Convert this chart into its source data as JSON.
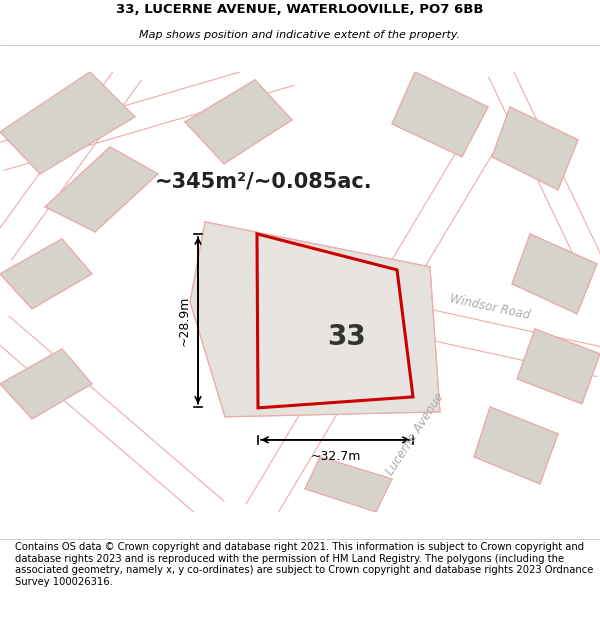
{
  "title_line1": "33, LUCERNE AVENUE, WATERLOOVILLE, PO7 6BB",
  "title_line2": "Map shows position and indicative extent of the property.",
  "area_text": "~345m²/~0.085ac.",
  "plot_number": "33",
  "dim_width": "~32.7m",
  "dim_height": "~28.9m",
  "road_label_1": "Windsor Road",
  "road_label_2": "Lucerne Avenue",
  "footer_text": "Contains OS data © Crown copyright and database right 2021. This information is subject to Crown copyright and database rights 2023 and is reproduced with the permission of HM Land Registry. The polygons (including the associated geometry, namely x, y co-ordinates) are subject to Crown copyright and database rights 2023 Ordnance Survey 100026316.",
  "map_bg": "#f2f0ed",
  "plot_fill": "#e8e5e0",
  "plot_border": "#cc0000",
  "road_color": "#ffffff",
  "building_fill": "#d6d2cc",
  "building_border": "#c5c0ba",
  "pink_line": "#f0aaaa",
  "grey_line": "#c8c3bc",
  "title_fontsize": 9.5,
  "subtitle_fontsize": 8,
  "footer_fontsize": 7.2,
  "area_fontsize": 15,
  "num_fontsize": 20,
  "dim_fontsize": 9,
  "road_label_fontsize": 8.5
}
